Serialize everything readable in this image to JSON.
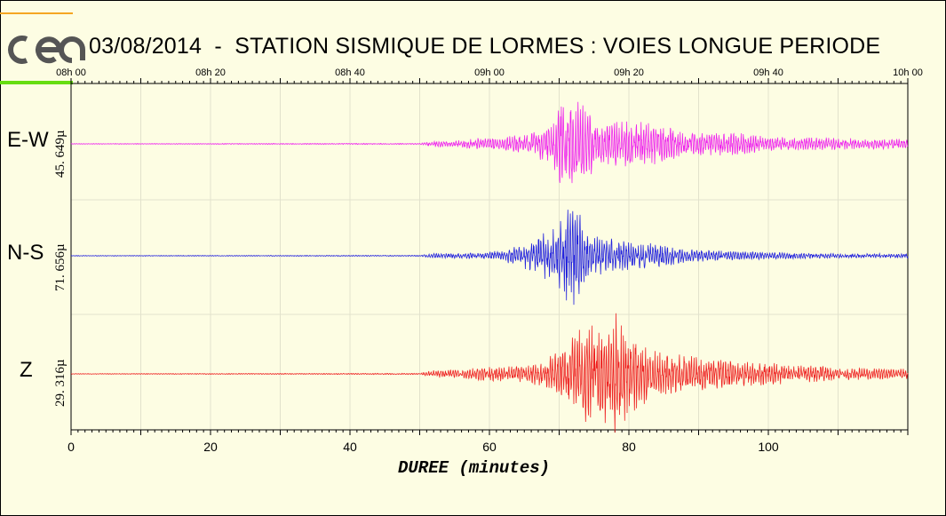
{
  "header": {
    "title": "03/08/2014  -  STATION SISMIQUE DE LORMES : VOIES LONGUE PERIODE",
    "logo_icon": "cea-logo-icon"
  },
  "colors": {
    "background": "#fdfde3",
    "ew": "#ee22ee",
    "ns": "#2222dd",
    "z": "#ee2222",
    "grid": "#e2e2cc"
  },
  "chart_data": {
    "type": "line",
    "title": "03/08/2014  -  STATION SISMIQUE DE LORMES : VOIES LONGUE PERIODE",
    "xlabel": "DUREE (minutes)",
    "ylabel": "",
    "xlim": [
      0,
      120
    ],
    "x_ticks_bottom": [
      "0",
      "20",
      "40",
      "60",
      "80",
      "100"
    ],
    "x_tick_values_bottom": [
      0,
      20,
      40,
      60,
      80,
      100
    ],
    "x_ticks_top": [
      "08h 00",
      "08h 20",
      "08h 40",
      "09h 00",
      "09h 20",
      "09h 40",
      "10h 00"
    ],
    "x_tick_values_top": [
      0,
      20,
      40,
      60,
      80,
      100,
      120
    ],
    "grid": true,
    "series": [
      {
        "name": "E-W",
        "amplitude_label": "45. 649µ",
        "envelope": [
          [
            0,
            0.005
          ],
          [
            50,
            0.01
          ],
          [
            52,
            0.05
          ],
          [
            55,
            0.05
          ],
          [
            58,
            0.1
          ],
          [
            62,
            0.12
          ],
          [
            66,
            0.18
          ],
          [
            69,
            0.4
          ],
          [
            71,
            1.0
          ],
          [
            72,
            0.85
          ],
          [
            74,
            0.6
          ],
          [
            76,
            0.35
          ],
          [
            80,
            0.4
          ],
          [
            84,
            0.35
          ],
          [
            88,
            0.2
          ],
          [
            95,
            0.2
          ],
          [
            100,
            0.12
          ],
          [
            110,
            0.1
          ],
          [
            120,
            0.08
          ]
        ]
      },
      {
        "name": "N-S",
        "amplitude_label": "71. 656µ",
        "envelope": [
          [
            0,
            0.005
          ],
          [
            50,
            0.01
          ],
          [
            52,
            0.04
          ],
          [
            58,
            0.05
          ],
          [
            62,
            0.1
          ],
          [
            66,
            0.28
          ],
          [
            69,
            0.5
          ],
          [
            71,
            0.8
          ],
          [
            72,
            1.0
          ],
          [
            74,
            0.5
          ],
          [
            76,
            0.35
          ],
          [
            80,
            0.25
          ],
          [
            84,
            0.22
          ],
          [
            88,
            0.12
          ],
          [
            95,
            0.08
          ],
          [
            100,
            0.06
          ],
          [
            110,
            0.04
          ],
          [
            120,
            0.04
          ]
        ]
      },
      {
        "name": "Z",
        "amplitude_label": "29. 316µ",
        "envelope": [
          [
            0,
            0.005
          ],
          [
            50,
            0.01
          ],
          [
            52,
            0.06
          ],
          [
            56,
            0.06
          ],
          [
            58,
            0.1
          ],
          [
            62,
            0.12
          ],
          [
            66,
            0.15
          ],
          [
            69,
            0.3
          ],
          [
            71,
            0.45
          ],
          [
            74,
            0.9
          ],
          [
            76,
            0.7
          ],
          [
            78,
            1.0
          ],
          [
            80,
            0.65
          ],
          [
            84,
            0.35
          ],
          [
            88,
            0.3
          ],
          [
            95,
            0.2
          ],
          [
            100,
            0.18
          ],
          [
            110,
            0.1
          ],
          [
            120,
            0.08
          ]
        ]
      }
    ]
  }
}
